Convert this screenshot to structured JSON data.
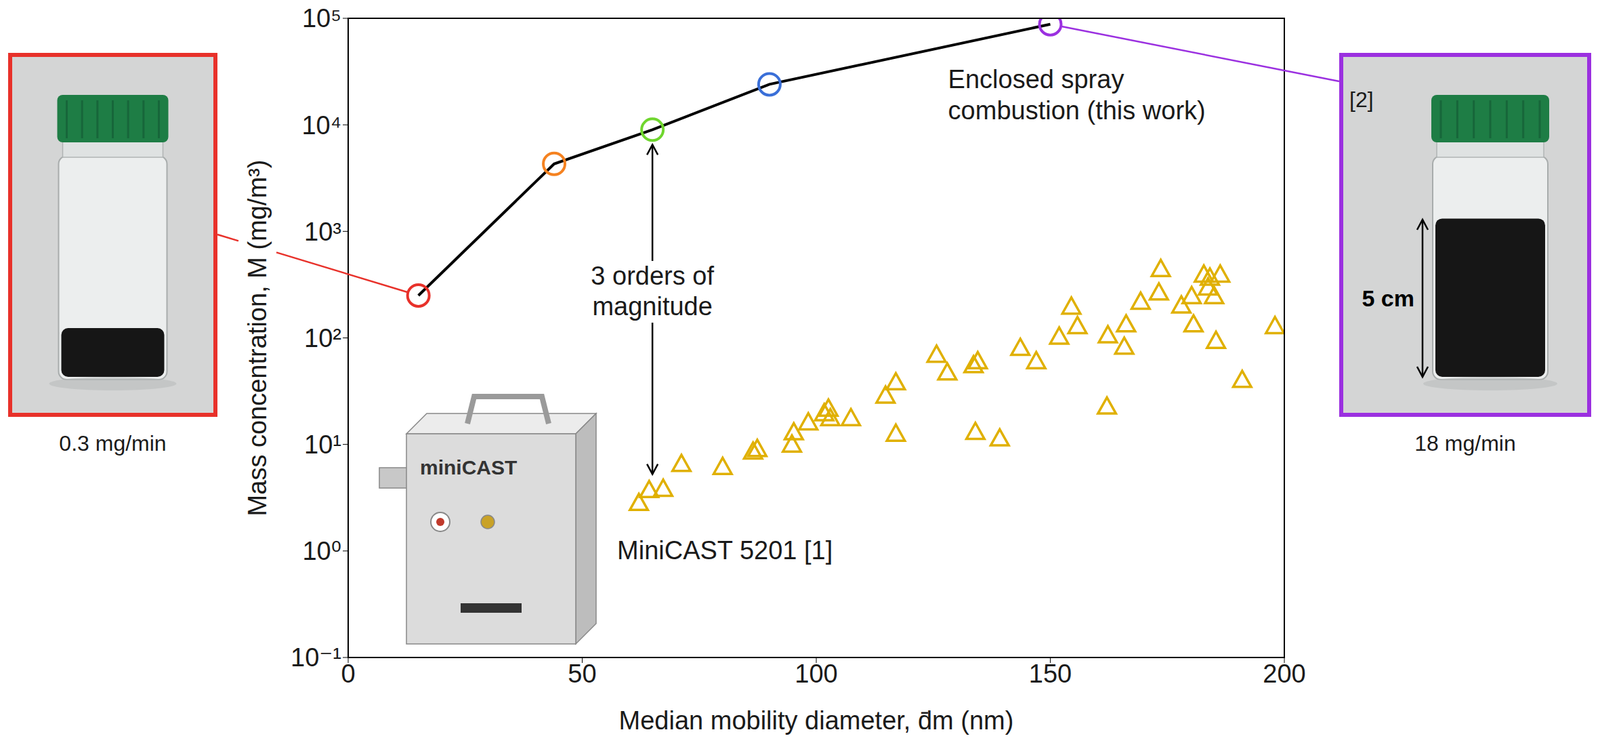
{
  "chart_data": {
    "type": "scatter",
    "x_label": "Median mobility diameter, d̄m (nm)",
    "y_label": "Mass concentration, M (mg/m³)",
    "xlim": [
      0,
      200
    ],
    "xticks": [
      0,
      50,
      100,
      150,
      200
    ],
    "ylim": [
      0.1,
      100000
    ],
    "yticks": [
      {
        "value": 0.1,
        "label": "10⁻¹"
      },
      {
        "value": 1,
        "label": "10⁰"
      },
      {
        "value": 10,
        "label": "10¹"
      },
      {
        "value": 100,
        "label": "10²"
      },
      {
        "value": 1000,
        "label": "10³"
      },
      {
        "value": 10000,
        "label": "10⁴"
      },
      {
        "value": 100000,
        "label": "10⁵"
      }
    ],
    "log": "y",
    "grid": false,
    "series": [
      {
        "name": "Enclosed spray combustion (this work)",
        "type": "line",
        "color": "#000000",
        "colors": [
          "#e8312a",
          "#f58220",
          "#6fd62e",
          "#3a6fd8",
          "#9b30e0"
        ],
        "marker": "circle",
        "line_style": "solid",
        "label_x": 160,
        "label_y": 18800,
        "x": [
          15,
          44,
          65,
          90,
          150
        ],
        "values": [
          250,
          4300,
          9000,
          24000,
          88000
        ]
      },
      {
        "name": "MiniCAST 5201 [1]",
        "type": "scatter",
        "color": "#e0b000",
        "marker": "triangle",
        "line_style": "none",
        "label_x": 89.3,
        "label_y": 1,
        "x": [
          62.1,
          64.3,
          67.3,
          71.2,
          80,
          87.4,
          86.5,
          94.8,
          95.2,
          98.3,
          101.7,
          102.6,
          103,
          107.4,
          114.8,
          117,
          117,
          125.7,
          128,
          133.6,
          134.5,
          134,
          139.2,
          143.6,
          147,
          151.9,
          154.5,
          155.8,
          162.1,
          162.3,
          166.2,
          165.8,
          169.3,
          173.6,
          173.2,
          178,
          180.6,
          180.2,
          182.8,
          183.7,
          184.1,
          185,
          186.3,
          185.4,
          191,
          198
        ],
        "values": [
          2.8,
          3.7,
          3.8,
          6.5,
          6.1,
          9.0,
          8.5,
          9.9,
          12.9,
          16,
          19.5,
          21.5,
          17.5,
          17.5,
          28.5,
          38,
          12.5,
          69,
          47,
          55,
          60,
          13,
          11.3,
          80,
          60,
          102,
          195,
          128,
          22.5,
          105,
          133,
          82,
          217,
          440,
          265,
          200,
          133,
          245,
          390,
          295,
          365,
          245,
          390,
          93,
          40,
          128
        ]
      }
    ],
    "annotations": [
      {
        "text": "3 orders of magnitude",
        "x": 65,
        "y": 270,
        "arrow_from": 9000,
        "arrow_to": 3.8
      }
    ]
  },
  "photos": [
    {
      "caption": "0.3 mg/min"
    },
    {
      "caption": "18 mg/min",
      "scale_label": "5 cm",
      "reference": "[2]"
    }
  ],
  "device": {
    "label": "miniCAST"
  }
}
